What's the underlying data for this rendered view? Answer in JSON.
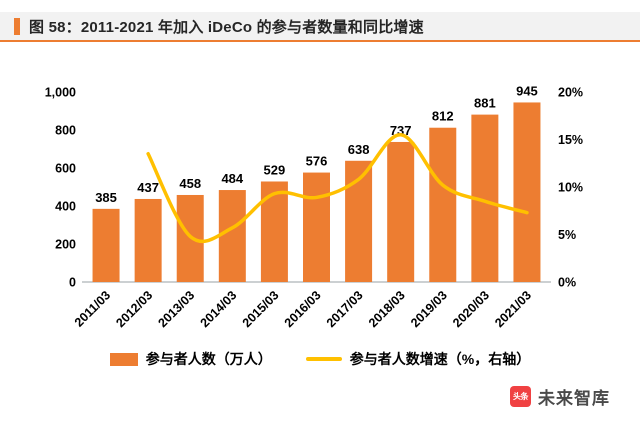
{
  "header": {
    "title": "图 58：2011-2021 年加入 iDeCo 的参与者数量和同比增速"
  },
  "chart_data": {
    "type": "bar",
    "title": "2011-2021 年加入 iDeCo 的参与者数量和同比增速",
    "categories": [
      "2011/03",
      "2012/03",
      "2013/03",
      "2014/03",
      "2015/03",
      "2016/03",
      "2017/03",
      "2018/03",
      "2019/03",
      "2020/03",
      "2021/03"
    ],
    "series": [
      {
        "name": "参与者人数（万人）",
        "type": "bar",
        "axis": "left",
        "values": [
          385,
          437,
          458,
          484,
          529,
          576,
          638,
          737,
          812,
          881,
          945
        ]
      },
      {
        "name": "参与者人数增速（%，右轴）",
        "type": "line",
        "axis": "right",
        "starts_at": "2012/03",
        "values": [
          13.5,
          4.8,
          5.7,
          9.3,
          8.9,
          10.8,
          15.5,
          10.2,
          8.5,
          7.3
        ]
      }
    ],
    "left_axis": {
      "min": 0,
      "max": 1000,
      "tick_values": [
        0,
        200,
        400,
        600,
        800,
        1000
      ],
      "ticks": [
        "0",
        "200",
        "400",
        "600",
        "800",
        "1,000"
      ]
    },
    "right_axis": {
      "min": 0,
      "max": 20,
      "tick_values": [
        0,
        5,
        10,
        15,
        20
      ],
      "ticks": [
        "0%",
        "5%",
        "10%",
        "15%",
        "20%"
      ]
    },
    "colors": {
      "bar": "#ed7d31",
      "line": "#ffc000"
    },
    "grid": "off",
    "legend_position": "bottom"
  },
  "legend": {
    "bar_label": "参与者人数（万人）",
    "line_label": "参与者人数增速（%，右轴）"
  },
  "watermark": {
    "logo": "头条",
    "text": "未来智库"
  }
}
